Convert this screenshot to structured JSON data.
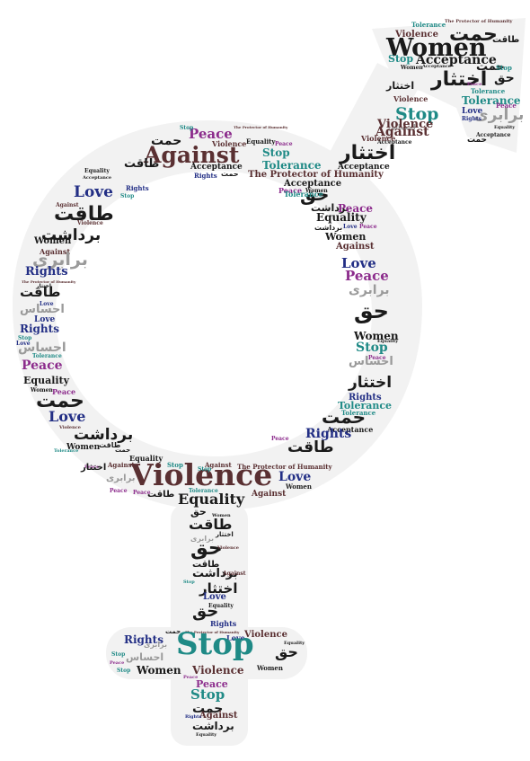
{
  "palette": {
    "maroon": "#5a3032",
    "black": "#1a1a1a",
    "teal": "#1f8a86",
    "navy": "#232f85",
    "purple": "#8c2c8c",
    "gray": "#9a9a9a",
    "shape_fill": "#f2f2f2"
  },
  "cloud": [
    {
      "text": "Stop",
      "color": "teal"
    },
    {
      "text": "Violence",
      "color": "maroon"
    },
    {
      "text": "Against",
      "color": "maroon"
    },
    {
      "text": "Women",
      "color": "black"
    },
    {
      "text": "Acceptance",
      "color": "black"
    },
    {
      "text": "Equality",
      "color": "black"
    },
    {
      "text": "Tolerance",
      "color": "teal"
    },
    {
      "text": "The Protector of Humanity",
      "color": "maroon"
    },
    {
      "text": "Love",
      "color": "navy"
    },
    {
      "text": "Rights",
      "color": "navy"
    },
    {
      "text": "Peace",
      "color": "purple"
    },
    {
      "text": "حمت",
      "color": "black"
    },
    {
      "text": "اختثار",
      "color": "black"
    },
    {
      "text": "حق",
      "color": "black"
    },
    {
      "text": "طاقت",
      "color": "black"
    },
    {
      "text": "برداشت",
      "color": "black"
    },
    {
      "text": "برابری",
      "color": "gray"
    },
    {
      "text": "احساس",
      "color": "gray"
    }
  ]
}
